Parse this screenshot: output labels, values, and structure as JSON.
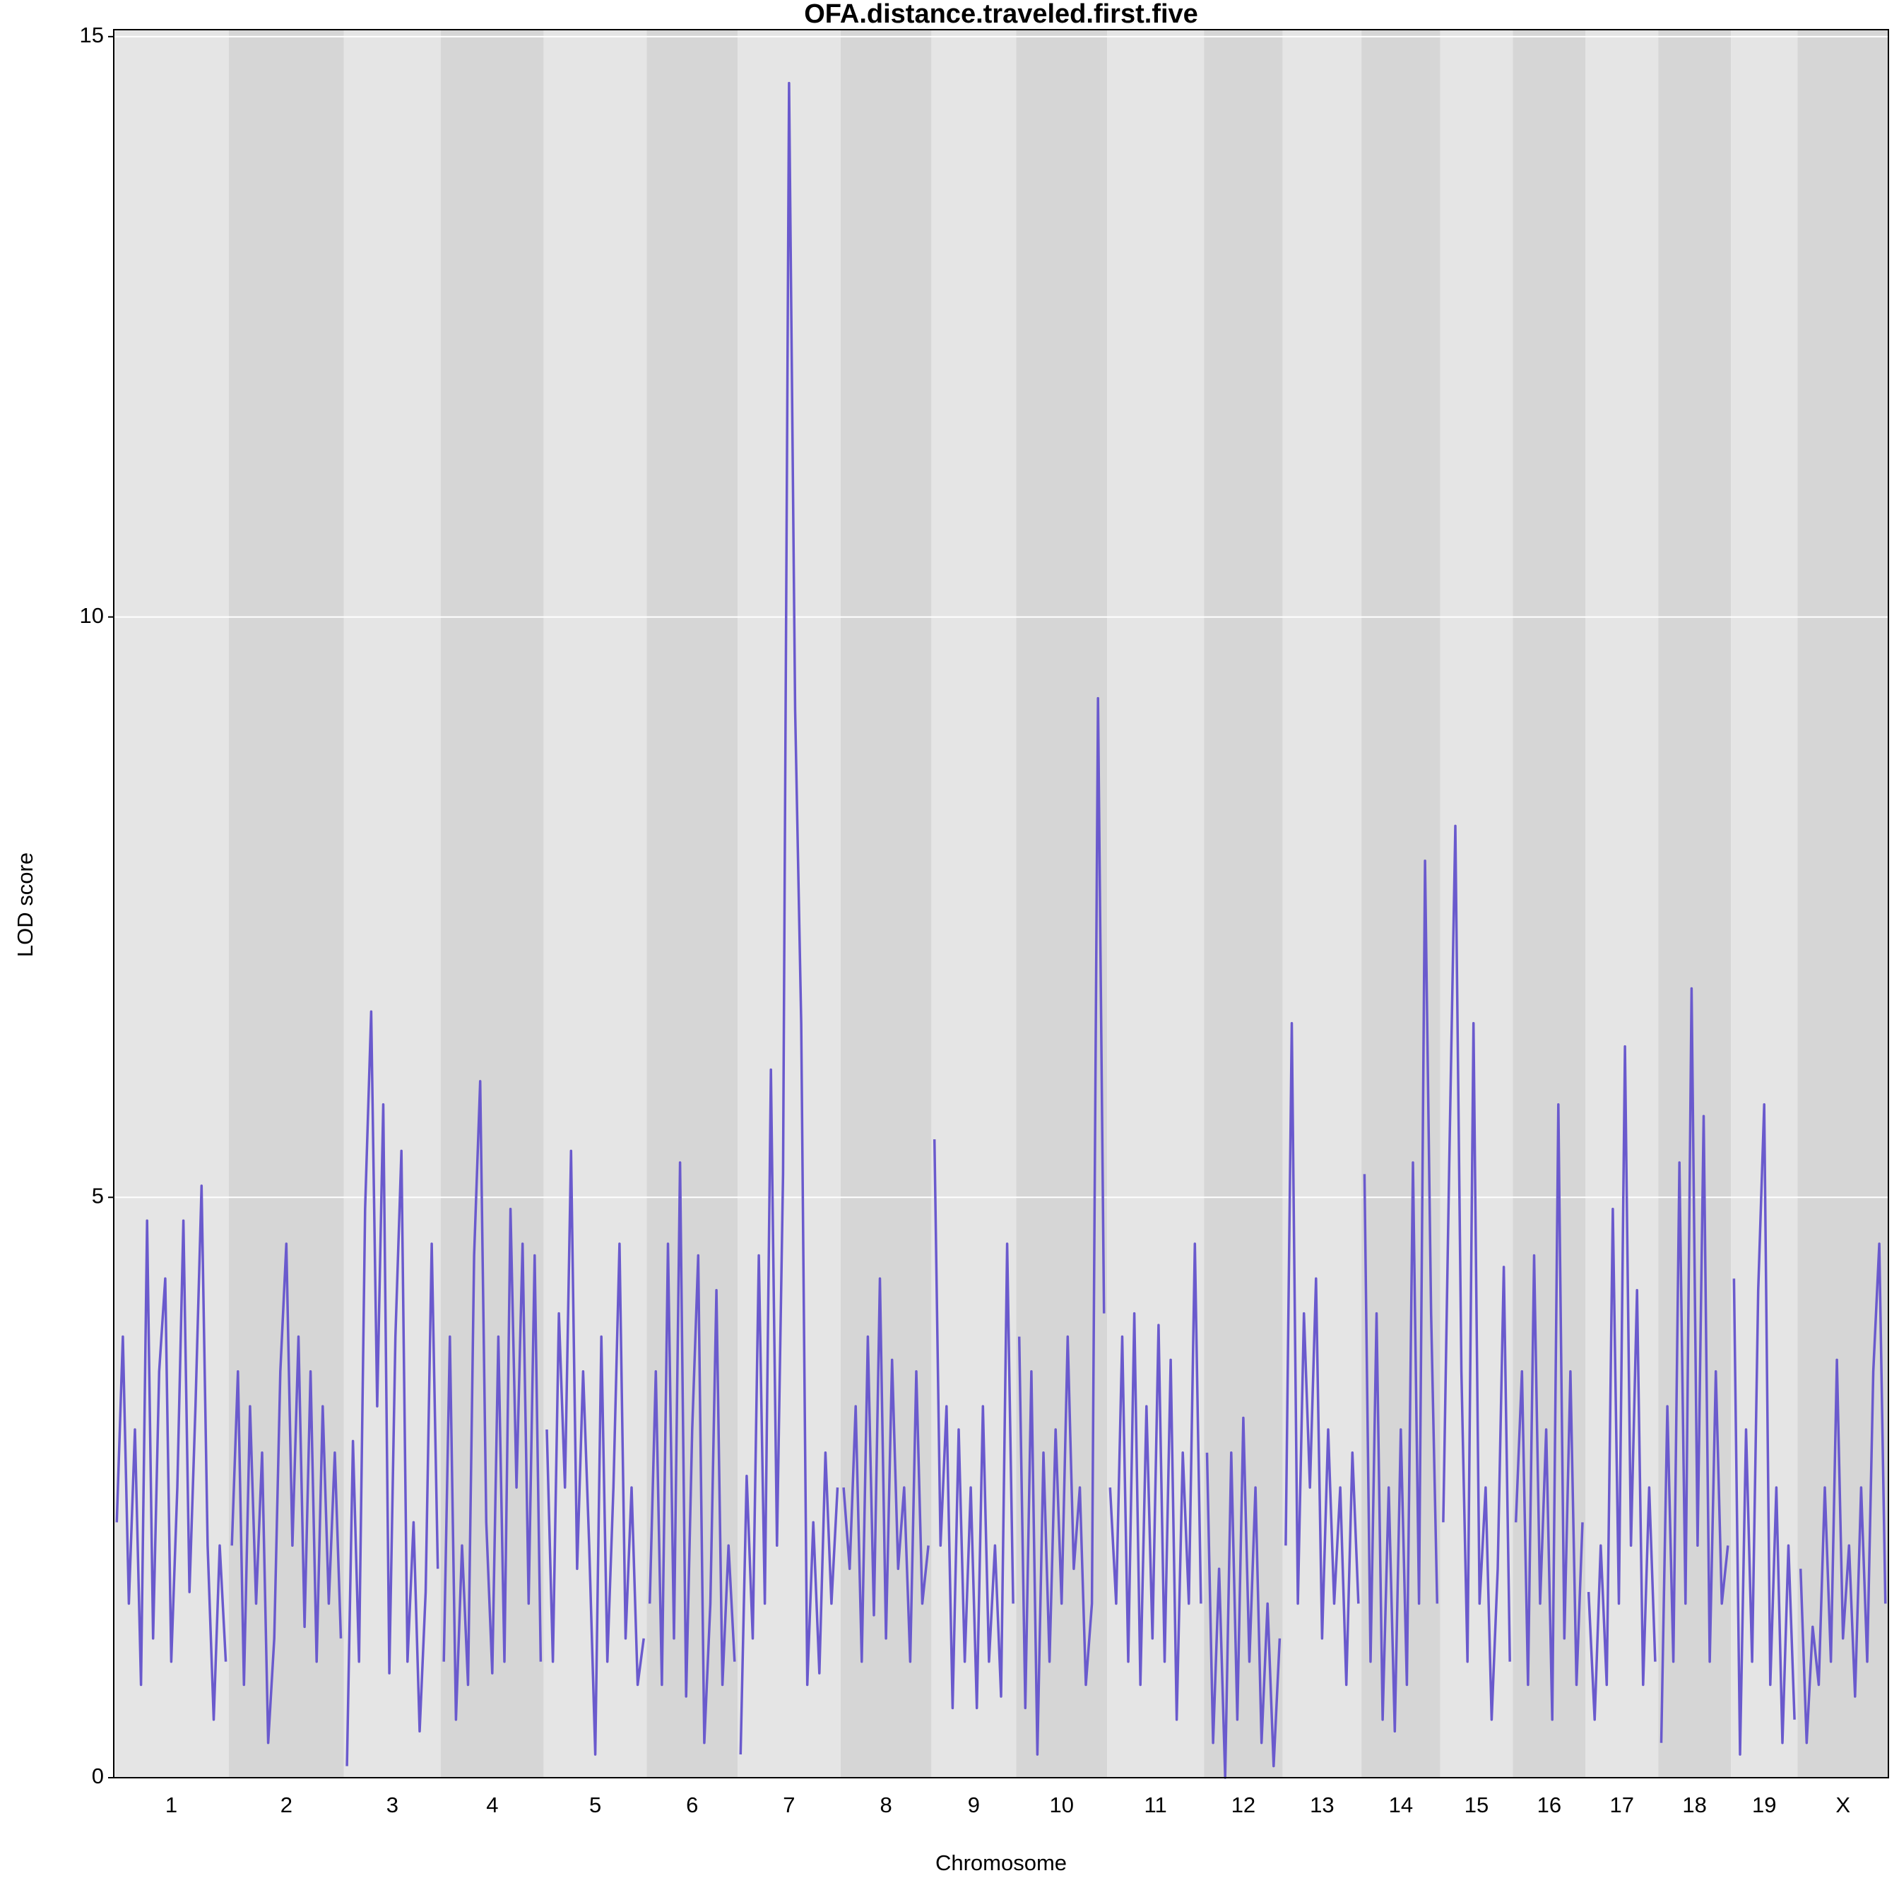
{
  "chart_data": {
    "type": "line",
    "title": "OFA.distance.traveled.first.five",
    "xlabel": "Chromosome",
    "ylabel": "LOD score",
    "ylim": [
      0,
      15.06
    ],
    "yticks": [
      0,
      5,
      10,
      15
    ],
    "grid": true,
    "color": "#6a5acd",
    "categories": [
      "1",
      "2",
      "3",
      "4",
      "5",
      "6",
      "7",
      "8",
      "9",
      "10",
      "11",
      "12",
      "13",
      "14",
      "15",
      "16",
      "17",
      "18",
      "19",
      "X"
    ],
    "values": [
      [
        2.2,
        3.8,
        1.5,
        3.0,
        0.8,
        4.8,
        1.2,
        3.5,
        4.3,
        1.0,
        2.5,
        4.8,
        1.6,
        3.2,
        5.1,
        2.0,
        0.5,
        2.0,
        1.0
      ],
      [
        2.0,
        3.5,
        0.8,
        3.2,
        1.5,
        2.8,
        0.3,
        1.2,
        3.5,
        4.6,
        2.0,
        3.8,
        1.3,
        3.5,
        1.0,
        3.2,
        1.5,
        2.8,
        1.2
      ],
      [
        0.1,
        2.9,
        1.0,
        4.9,
        6.6,
        3.2,
        5.8,
        0.9,
        3.8,
        5.4,
        1.0,
        2.2,
        0.4,
        1.6,
        4.6,
        1.8
      ],
      [
        1.0,
        3.8,
        0.5,
        2.0,
        0.8,
        4.5,
        6.0,
        2.2,
        0.9,
        3.8,
        1.0,
        4.9,
        2.5,
        4.6,
        1.5,
        4.5,
        1.0
      ],
      [
        3.0,
        1.0,
        4.0,
        2.5,
        5.4,
        1.8,
        3.5,
        2.0,
        0.2,
        3.8,
        1.0,
        2.5,
        4.6,
        1.2,
        2.5,
        0.8,
        1.2
      ],
      [
        1.5,
        3.5,
        0.8,
        4.6,
        1.2,
        5.3,
        0.7,
        3.0,
        4.5,
        0.3,
        1.5,
        4.2,
        0.8,
        2.0,
        1.0
      ],
      [
        0.2,
        2.6,
        1.2,
        4.5,
        1.5,
        6.1,
        2.0,
        5.2,
        14.6,
        9.2,
        6.5,
        0.8,
        2.2,
        0.9,
        2.8,
        1.5,
        2.5
      ],
      [
        2.5,
        1.8,
        3.2,
        1.0,
        3.8,
        1.4,
        4.3,
        1.2,
        3.6,
        1.8,
        2.5,
        1.0,
        3.5,
        1.5,
        2.0
      ],
      [
        5.5,
        2.0,
        3.2,
        0.6,
        3.0,
        1.0,
        2.5,
        0.6,
        3.2,
        1.0,
        2.0,
        0.7,
        4.6,
        1.5
      ],
      [
        3.8,
        0.6,
        3.5,
        0.2,
        2.8,
        1.0,
        3.0,
        1.5,
        3.8,
        1.8,
        2.5,
        0.8,
        1.5,
        9.3,
        4.0
      ],
      [
        2.5,
        1.5,
        3.8,
        1.0,
        4.0,
        0.8,
        3.2,
        1.2,
        3.9,
        1.0,
        3.6,
        0.5,
        2.8,
        1.5,
        4.6,
        1.5
      ],
      [
        2.8,
        0.3,
        1.8,
        0.0,
        2.8,
        0.5,
        3.1,
        1.0,
        2.5,
        0.3,
        1.5,
        0.1,
        1.2
      ],
      [
        2.0,
        6.5,
        1.5,
        4.0,
        2.5,
        4.3,
        1.2,
        3.0,
        1.5,
        2.5,
        0.8,
        2.8,
        1.5
      ],
      [
        5.2,
        1.0,
        4.0,
        0.5,
        2.5,
        0.4,
        3.0,
        0.8,
        5.3,
        1.5,
        7.9,
        4.0,
        1.5
      ],
      [
        2.2,
        5.3,
        8.2,
        3.5,
        1.0,
        6.5,
        1.5,
        2.5,
        0.5,
        1.8,
        4.4,
        1.0
      ],
      [
        2.2,
        3.5,
        0.8,
        4.5,
        1.5,
        3.0,
        0.5,
        5.8,
        1.2,
        3.5,
        0.8,
        2.2
      ],
      [
        1.6,
        0.5,
        2.0,
        0.8,
        4.9,
        1.5,
        6.3,
        2.0,
        4.2,
        0.8,
        2.5,
        1.0
      ],
      [
        0.3,
        3.2,
        1.0,
        5.3,
        1.5,
        6.8,
        2.0,
        5.7,
        1.0,
        3.5,
        1.5,
        2.0
      ],
      [
        4.3,
        0.2,
        3.0,
        1.0,
        4.2,
        5.8,
        0.8,
        2.5,
        0.3,
        2.0,
        0.5
      ],
      [
        1.8,
        0.3,
        1.3,
        0.8,
        2.5,
        1.0,
        3.6,
        1.2,
        2.0,
        0.7,
        2.5,
        1.0,
        3.5,
        4.6,
        1.5
      ]
    ]
  }
}
